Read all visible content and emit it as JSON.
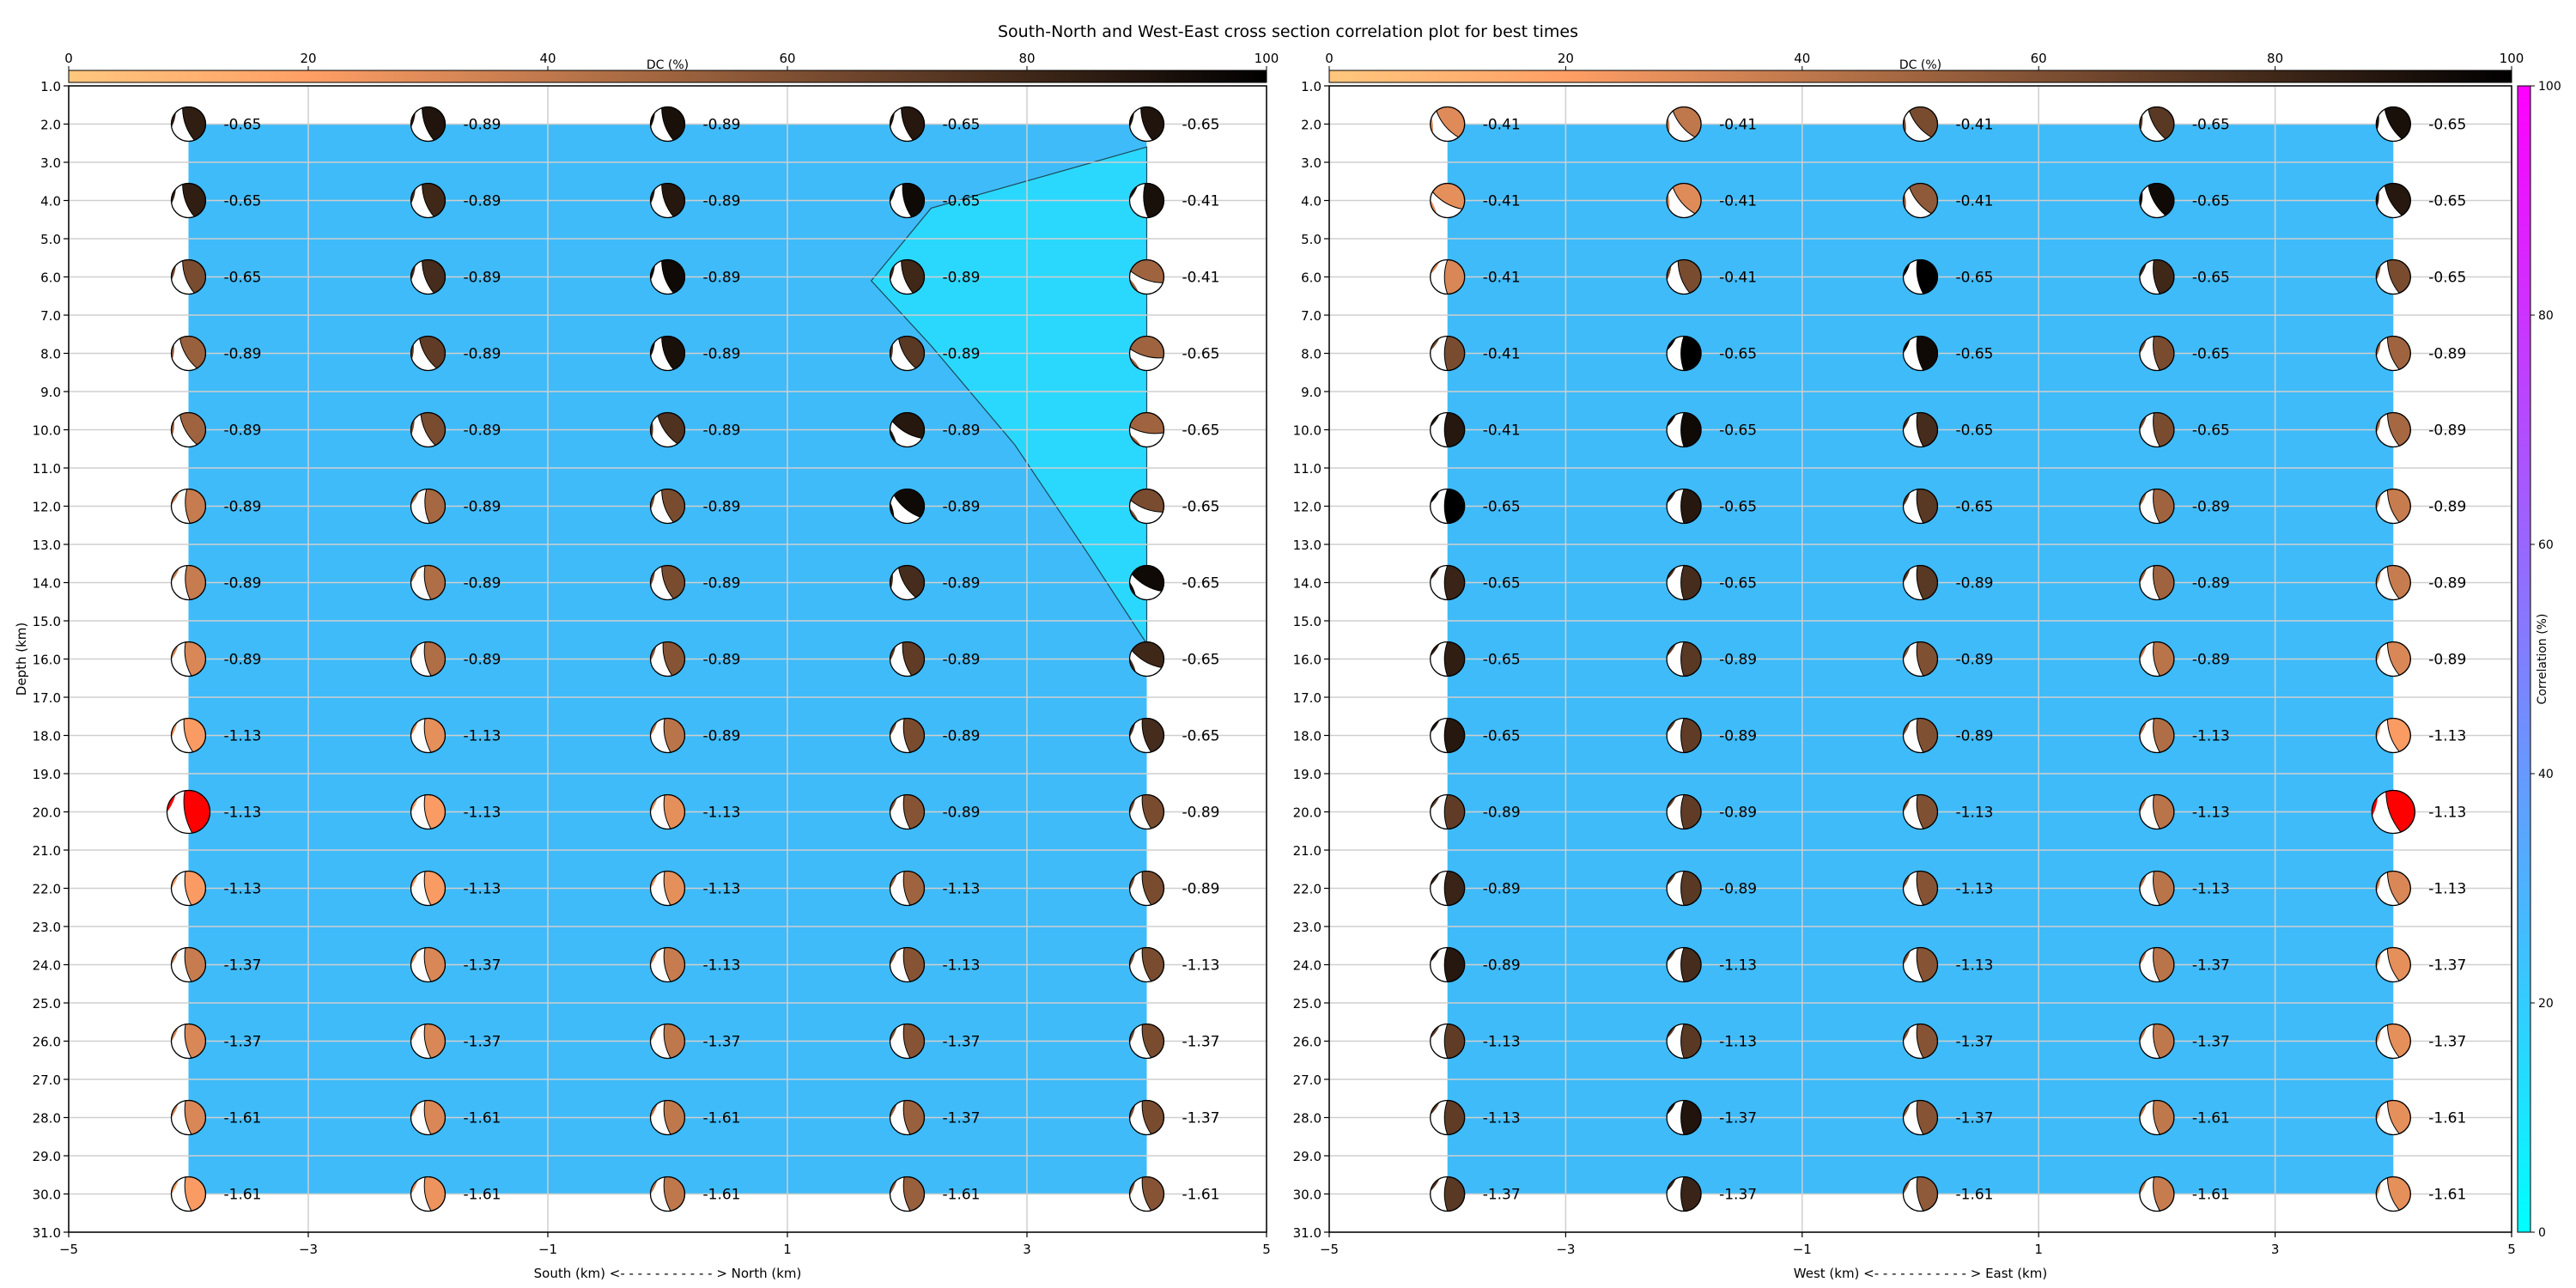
{
  "title": "South-North and West-East cross section correlation plot for best times",
  "colors": {
    "contour_fill": "#3fbbf9",
    "contour_fill_high": "#2bd8fd",
    "beachball_highlight": "#ff0000",
    "grid": "#cfcfcf"
  },
  "dc_colorbar": {
    "label": "DC (%)",
    "ticks": [
      "0",
      "20",
      "40",
      "60",
      "80",
      "100"
    ],
    "colormap": "copper_r"
  },
  "correlation_colorbar": {
    "label": "Correlation (%)",
    "ticks": [
      "0",
      "20",
      "40",
      "60",
      "80",
      "100"
    ],
    "colormap": "cool"
  },
  "chart_data": [
    {
      "type": "scatter",
      "name_panel": "south-north",
      "xlabel": "South (km) <- - - - - - - - - - - > North (km)",
      "ylabel": "Depth (km)",
      "xlim": [
        -5,
        5
      ],
      "ylim": [
        31,
        1
      ],
      "xticks": [
        "−5",
        "−3",
        "−1",
        "1",
        "3",
        "5"
      ],
      "yticks": [
        "1.0",
        "2.0",
        "3.0",
        "4.0",
        "5.0",
        "6.0",
        "7.0",
        "8.0",
        "9.0",
        "10.0",
        "11.0",
        "12.0",
        "13.0",
        "14.0",
        "15.0",
        "16.0",
        "17.0",
        "18.0",
        "19.0",
        "20.0",
        "21.0",
        "22.0",
        "23.0",
        "24.0",
        "25.0",
        "26.0",
        "27.0",
        "28.0",
        "29.0",
        "30.0",
        "31.0"
      ],
      "grid": true,
      "x": [
        -4,
        -2,
        0,
        2,
        4
      ],
      "depths": [
        2,
        4,
        6,
        8,
        10,
        12,
        14,
        16,
        18,
        20,
        22,
        24,
        26,
        28,
        30
      ],
      "labels": [
        [
          "-0.65",
          "-0.89",
          "-0.89",
          "-0.65",
          "-0.65"
        ],
        [
          "-0.65",
          "-0.89",
          "-0.89",
          "-0.65",
          "-0.41"
        ],
        [
          "-0.65",
          "-0.89",
          "-0.89",
          "-0.89",
          "-0.41"
        ],
        [
          "-0.89",
          "-0.89",
          "-0.89",
          "-0.89",
          "-0.65"
        ],
        [
          "-0.89",
          "-0.89",
          "-0.89",
          "-0.89",
          "-0.65"
        ],
        [
          "-0.89",
          "-0.89",
          "-0.89",
          "-0.89",
          "-0.65"
        ],
        [
          "-0.89",
          "-0.89",
          "-0.89",
          "-0.89",
          "-0.65"
        ],
        [
          "-0.89",
          "-0.89",
          "-0.89",
          "-0.89",
          "-0.65"
        ],
        [
          "-1.13",
          "-1.13",
          "-0.89",
          "-0.89",
          "-0.65"
        ],
        [
          "-1.13",
          "-1.13",
          "-1.13",
          "-0.89",
          "-0.89"
        ],
        [
          "-1.13",
          "-1.13",
          "-1.13",
          "-1.13",
          "-0.89"
        ],
        [
          "-1.37",
          "-1.37",
          "-1.13",
          "-1.13",
          "-1.13"
        ],
        [
          "-1.37",
          "-1.37",
          "-1.37",
          "-1.37",
          "-1.37"
        ],
        [
          "-1.61",
          "-1.61",
          "-1.61",
          "-1.37",
          "-1.37"
        ],
        [
          "-1.61",
          "-1.61",
          "-1.61",
          "-1.61",
          "-1.61"
        ]
      ],
      "dc": [
        [
          85,
          90,
          92,
          88,
          90
        ],
        [
          85,
          80,
          88,
          95,
          92
        ],
        [
          62,
          78,
          95,
          80,
          50
        ],
        [
          52,
          70,
          92,
          72,
          50
        ],
        [
          50,
          62,
          75,
          88,
          50
        ],
        [
          38,
          48,
          62,
          95,
          62
        ],
        [
          38,
          45,
          62,
          78,
          95
        ],
        [
          32,
          45,
          58,
          70,
          80
        ],
        [
          22,
          28,
          42,
          62,
          78
        ],
        [
          0,
          22,
          28,
          58,
          62
        ],
        [
          22,
          22,
          28,
          50,
          62
        ],
        [
          38,
          32,
          38,
          58,
          62
        ],
        [
          32,
          32,
          40,
          58,
          62
        ],
        [
          32,
          32,
          40,
          52,
          62
        ],
        [
          22,
          26,
          40,
          52,
          58
        ]
      ],
      "strike": [
        [
          160,
          160,
          160,
          160,
          160
        ],
        [
          160,
          160,
          160,
          165,
          175
        ],
        [
          160,
          160,
          160,
          160,
          110
        ],
        [
          150,
          150,
          160,
          150,
          105
        ],
        [
          150,
          155,
          145,
          120,
          100
        ],
        [
          175,
          175,
          160,
          130,
          110
        ],
        [
          175,
          170,
          160,
          150,
          120
        ],
        [
          170,
          170,
          165,
          165,
          120
        ],
        [
          165,
          170,
          170,
          170,
          165
        ],
        [
          170,
          170,
          170,
          170,
          165
        ],
        [
          170,
          170,
          170,
          170,
          165
        ],
        [
          170,
          170,
          170,
          170,
          165
        ],
        [
          170,
          170,
          170,
          170,
          165
        ],
        [
          170,
          170,
          170,
          170,
          165
        ],
        [
          170,
          170,
          170,
          170,
          165
        ]
      ],
      "best_solution": [
        9,
        0
      ],
      "contour_high_region": [
        [
          4,
          2.6
        ],
        [
          2.2,
          4.2
        ],
        [
          1.7,
          6.1
        ],
        [
          2.2,
          7.8
        ],
        [
          2.9,
          10.4
        ],
        [
          3.5,
          13.2
        ],
        [
          4,
          15.6
        ]
      ]
    },
    {
      "type": "scatter",
      "name_panel": "west-east",
      "xlabel": "West (km) <- - - - - - - - - - - > East (km)",
      "ylabel": "",
      "xlim": [
        -5,
        5
      ],
      "ylim": [
        31,
        1
      ],
      "xticks": [
        "−5",
        "−3",
        "−1",
        "1",
        "3",
        "5"
      ],
      "yticks": [
        "1.0",
        "2.0",
        "3.0",
        "4.0",
        "5.0",
        "6.0",
        "7.0",
        "8.0",
        "9.0",
        "10.0",
        "11.0",
        "12.0",
        "13.0",
        "14.0",
        "15.0",
        "16.0",
        "17.0",
        "18.0",
        "19.0",
        "20.0",
        "21.0",
        "22.0",
        "23.0",
        "24.0",
        "25.0",
        "26.0",
        "27.0",
        "28.0",
        "29.0",
        "30.0",
        "31.0"
      ],
      "grid": true,
      "x": [
        -4,
        -2,
        0,
        2,
        4
      ],
      "depths": [
        2,
        4,
        6,
        8,
        10,
        12,
        14,
        16,
        18,
        20,
        22,
        24,
        26,
        28,
        30
      ],
      "labels": [
        [
          "-0.41",
          "-0.41",
          "-0.41",
          "-0.65",
          "-0.65"
        ],
        [
          "-0.41",
          "-0.41",
          "-0.41",
          "-0.65",
          "-0.65"
        ],
        [
          "-0.41",
          "-0.41",
          "-0.65",
          "-0.65",
          "-0.65"
        ],
        [
          "-0.41",
          "-0.65",
          "-0.65",
          "-0.65",
          "-0.89"
        ],
        [
          "-0.41",
          "-0.65",
          "-0.65",
          "-0.65",
          "-0.89"
        ],
        [
          "-0.65",
          "-0.65",
          "-0.65",
          "-0.89",
          "-0.89"
        ],
        [
          "-0.65",
          "-0.65",
          "-0.89",
          "-0.89",
          "-0.89"
        ],
        [
          "-0.65",
          "-0.89",
          "-0.89",
          "-0.89",
          "-0.89"
        ],
        [
          "-0.65",
          "-0.89",
          "-0.89",
          "-1.13",
          "-1.13"
        ],
        [
          "-0.89",
          "-0.89",
          "-1.13",
          "-1.13",
          "-1.13"
        ],
        [
          "-0.89",
          "-0.89",
          "-1.13",
          "-1.13",
          "-1.13"
        ],
        [
          "-0.89",
          "-1.13",
          "-1.13",
          "-1.37",
          "-1.37"
        ],
        [
          "-1.13",
          "-1.13",
          "-1.37",
          "-1.37",
          "-1.37"
        ],
        [
          "-1.13",
          "-1.37",
          "-1.37",
          "-1.61",
          "-1.61"
        ],
        [
          "-1.37",
          "-1.37",
          "-1.61",
          "-1.61",
          "-1.61"
        ]
      ],
      "dc": [
        [
          30,
          40,
          62,
          72,
          92
        ],
        [
          28,
          30,
          55,
          95,
          88
        ],
        [
          32,
          62,
          100,
          80,
          62
        ],
        [
          62,
          100,
          95,
          62,
          50
        ],
        [
          88,
          95,
          78,
          62,
          48
        ],
        [
          100,
          88,
          72,
          50,
          38
        ],
        [
          82,
          78,
          72,
          50,
          38
        ],
        [
          85,
          72,
          60,
          42,
          32
        ],
        [
          88,
          70,
          60,
          45,
          22
        ],
        [
          70,
          70,
          60,
          42,
          0
        ],
        [
          82,
          72,
          58,
          42,
          32
        ],
        [
          88,
          78,
          58,
          42,
          28
        ],
        [
          70,
          72,
          58,
          40,
          28
        ],
        [
          70,
          90,
          58,
          40,
          28
        ],
        [
          72,
          82,
          55,
          38,
          28
        ]
      ],
      "strike": [
        [
          140,
          140,
          140,
          150,
          150
        ],
        [
          120,
          140,
          140,
          150,
          150
        ],
        [
          180,
          160,
          170,
          170,
          160
        ],
        [
          180,
          180,
          170,
          170,
          160
        ],
        [
          180,
          180,
          170,
          170,
          160
        ],
        [
          180,
          180,
          170,
          170,
          160
        ],
        [
          180,
          180,
          170,
          170,
          160
        ],
        [
          180,
          180,
          170,
          170,
          160
        ],
        [
          180,
          180,
          170,
          170,
          160
        ],
        [
          180,
          180,
          170,
          170,
          160
        ],
        [
          180,
          180,
          170,
          170,
          160
        ],
        [
          180,
          180,
          170,
          170,
          160
        ],
        [
          180,
          180,
          170,
          170,
          160
        ],
        [
          180,
          180,
          170,
          170,
          160
        ],
        [
          180,
          180,
          170,
          170,
          160
        ]
      ],
      "best_solution": [
        9,
        4
      ],
      "contour_high_region": []
    }
  ]
}
